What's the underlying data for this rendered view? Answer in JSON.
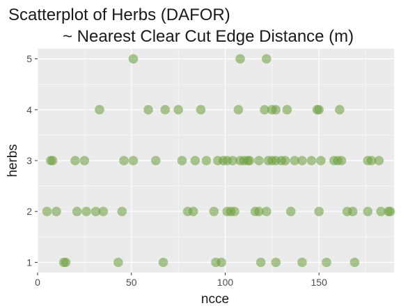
{
  "chart_data": {
    "type": "scatter",
    "title": "Scatterplot of Herbs (DAFOR)",
    "subtitle": "~ Nearest Clear Cut Edge Distance (m)",
    "xlabel": "ncce",
    "ylabel": "herbs",
    "xlim": [
      0,
      190
    ],
    "ylim": [
      0.8,
      5.2
    ],
    "x_ticks": [
      0,
      50,
      100,
      150
    ],
    "y_ticks": [
      1,
      2,
      3,
      4,
      5
    ],
    "grid": true,
    "legend": "none",
    "colors": {
      "panel": "#ebebeb",
      "grid_major": "#ffffff",
      "point": "#6a9e3a",
      "point_opacity": 0.55
    },
    "series": [
      {
        "x": [
          14,
          15,
          43,
          67,
          95,
          98,
          119,
          127,
          141,
          154,
          169,
          5,
          10,
          21,
          26,
          31,
          35,
          45,
          80,
          83,
          94,
          101,
          103,
          105,
          116,
          118,
          122,
          135,
          150,
          165,
          168,
          176,
          183,
          187,
          188,
          7,
          8,
          20,
          25,
          46,
          51,
          63,
          77,
          84,
          90,
          96,
          99,
          101,
          104,
          108,
          110,
          112,
          113,
          118,
          123,
          125,
          127,
          130,
          132,
          137,
          141,
          146,
          151,
          158,
          160,
          162,
          176,
          178,
          182,
          33,
          59,
          68,
          75,
          87,
          107,
          121,
          125,
          127,
          133,
          149,
          150,
          161,
          51,
          108,
          122
        ],
        "y": [
          1,
          1,
          1,
          1,
          1,
          1,
          1,
          1,
          1,
          1,
          1,
          2,
          2,
          2,
          2,
          2,
          2,
          2,
          2,
          2,
          2,
          2,
          2,
          2,
          2,
          2,
          2,
          2,
          2,
          2,
          2,
          2,
          2,
          2,
          2,
          3,
          3,
          3,
          3,
          3,
          3,
          3,
          3,
          3,
          3,
          3,
          3,
          3,
          3,
          3,
          3,
          3,
          3,
          3,
          3,
          3,
          3,
          3,
          3,
          3,
          3,
          3,
          3,
          3,
          3,
          3,
          3,
          3,
          3,
          4,
          4,
          4,
          4,
          4,
          4,
          4,
          4,
          4,
          4,
          4,
          4,
          4,
          5,
          5,
          5
        ]
      }
    ]
  }
}
